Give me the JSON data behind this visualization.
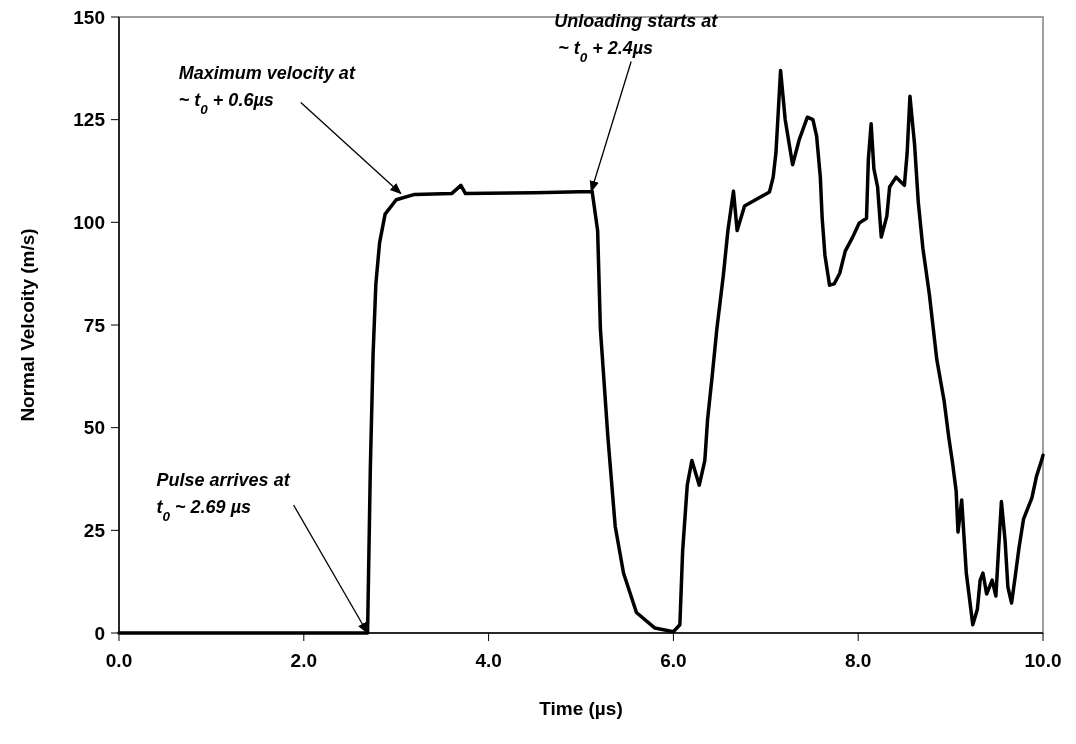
{
  "chart_data": {
    "type": "line",
    "xlabel": "Time (µs)",
    "ylabel": "Normal Velcoity (m/s)",
    "xlim": [
      0,
      10
    ],
    "xticks": [
      {
        "value": 0,
        "label": "0.0"
      },
      {
        "value": 2,
        "label": "2.0"
      },
      {
        "value": 4,
        "label": "4.0"
      },
      {
        "value": 6,
        "label": "6.0"
      },
      {
        "value": 8,
        "label": "8.0"
      },
      {
        "value": 10,
        "label": "10.0"
      }
    ],
    "ylim": [
      0,
      150
    ],
    "yticks": [
      0,
      25,
      50,
      75,
      100,
      125,
      150
    ],
    "grid": false,
    "marker": "none",
    "line_style": "solid",
    "series": [
      {
        "color": "#000000",
        "x": [
          0,
          1,
          2,
          2.69,
          2.72,
          2.75,
          2.78,
          2.82,
          2.88,
          3.0,
          3.2,
          3.6,
          3.7,
          3.75,
          4.5,
          5.11,
          5.12,
          5.18,
          5.21,
          5.29,
          5.37,
          5.46,
          5.6,
          5.8,
          6.0,
          6.07,
          6.1,
          6.15,
          6.2,
          6.28,
          6.34,
          6.37,
          6.42,
          6.47,
          6.54,
          6.59,
          6.65,
          6.69,
          6.77,
          7.04,
          7.08,
          7.11,
          7.16,
          7.21,
          7.29,
          7.36,
          7.45,
          7.51,
          7.55,
          7.59,
          7.61,
          7.64,
          7.69,
          7.74,
          7.8,
          7.86,
          7.94,
          8.01,
          8.09,
          8.11,
          8.14,
          8.17,
          8.21,
          8.25,
          8.31,
          8.34,
          8.41,
          8.5,
          8.53,
          8.56,
          8.61,
          8.65,
          8.7,
          8.77,
          8.85,
          8.93,
          8.98,
          9.02,
          9.06,
          9.08,
          9.12,
          9.17,
          9.24,
          9.29,
          9.32,
          9.35,
          9.39,
          9.45,
          9.49,
          9.52,
          9.55,
          9.59,
          9.62,
          9.66,
          9.7,
          9.74,
          9.79,
          9.88,
          9.93,
          9.99,
          10.0
        ],
        "values": [
          0,
          0,
          0,
          0,
          40,
          68,
          85,
          95,
          102,
          105.5,
          106.8,
          107,
          109,
          107,
          107.2,
          107.5,
          107.6,
          98,
          74,
          48,
          26,
          14.6,
          5,
          1.2,
          0.3,
          2,
          20,
          36,
          42,
          36,
          42,
          52,
          62.6,
          74,
          87,
          98,
          107.6,
          98,
          104,
          107.4,
          111,
          117,
          137,
          125,
          114,
          120,
          125.6,
          125,
          121,
          111,
          101,
          92,
          84.7,
          85,
          87.6,
          93,
          96.4,
          99.8,
          101,
          115.4,
          124,
          113,
          108.6,
          96.4,
          101.5,
          108.6,
          111,
          109,
          117,
          130.7,
          119,
          105,
          93.7,
          82.5,
          66.7,
          56.5,
          47.7,
          41.6,
          34.6,
          24.6,
          32.4,
          14.6,
          2,
          5.8,
          12.9,
          14.6,
          9.5,
          12.9,
          9,
          20.7,
          32,
          22.4,
          11.2,
          7.3,
          13.9,
          20.7,
          27.8,
          32.9,
          38.2,
          42.4,
          43.3
        ]
      }
    ],
    "annotations": [
      {
        "text": "Maximum velocity at\n~ t$_{0}$+ 0.6µs",
        "x": 3.05,
        "y": 107
      },
      {
        "text": "Unloading starts at\n~ t$_{0}$ + 2.4µs",
        "x": 5.11,
        "y": 107.5
      },
      {
        "text": "Pulse arrives at\nt$_{0}$ ~ 2.69 µs",
        "x": 2.69,
        "y": 0
      }
    ]
  }
}
